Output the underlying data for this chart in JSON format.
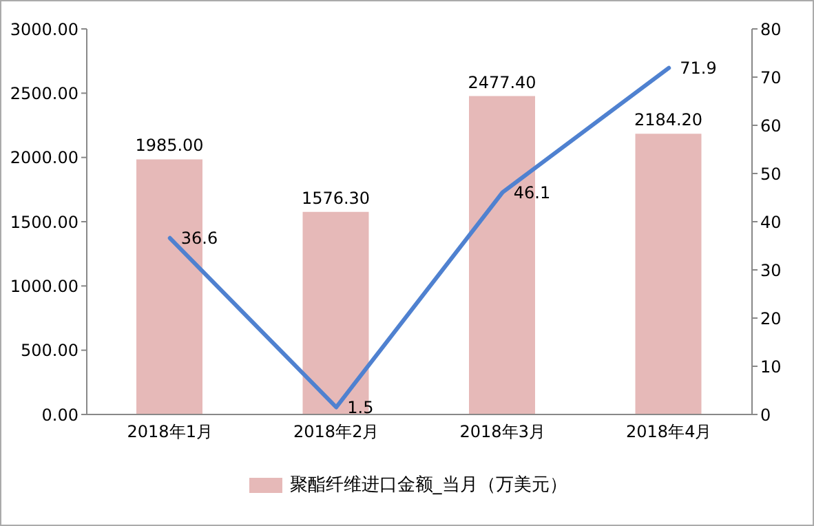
{
  "chart_data": {
    "type": "bar",
    "categories": [
      "2018年1月",
      "2018年2月",
      "2018年3月",
      "2018年4月"
    ],
    "series": [
      {
        "name": "聚酯纤维进口金额_当月（万美元）",
        "color": "#e6b9b8",
        "values": [
          1985.0,
          1576.3,
          2477.4,
          2184.2
        ],
        "value_labels": [
          "1985.00",
          "1576.30",
          "2477.40",
          "2184.20"
        ]
      },
      {
        "type": "line",
        "axis": "y2",
        "color": "#4f81d0",
        "values": [
          36.6,
          1.5,
          46.1,
          71.9
        ],
        "value_labels": [
          "36.6",
          "1.5",
          "46.1",
          "71.9"
        ]
      }
    ],
    "ylim": [
      0,
      3000
    ],
    "yticks": [
      {
        "value": 0,
        "label": "0.00"
      },
      {
        "value": 500,
        "label": "500.00"
      },
      {
        "value": 1000,
        "label": "1000.00"
      },
      {
        "value": 1500,
        "label": "1500.00"
      },
      {
        "value": 2000,
        "label": "2000.00"
      },
      {
        "value": 2500,
        "label": "2500.00"
      },
      {
        "value": 3000,
        "label": "3000.00"
      }
    ],
    "y2lim": [
      0,
      80
    ],
    "y2ticks": [
      0,
      10,
      20,
      30,
      40,
      50,
      60,
      70,
      80
    ],
    "grid": false,
    "legend": "bottom",
    "marker": "none",
    "line_style": "solid"
  }
}
